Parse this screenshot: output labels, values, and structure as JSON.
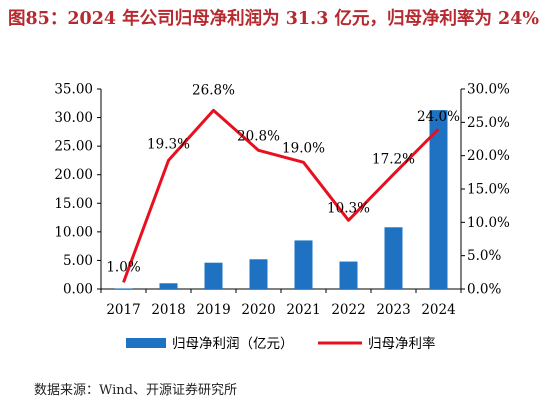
{
  "title": "图85：2024 年公司归母净利润为 31.3 亿元，归母净利率为 24%",
  "source": "数据来源：Wind、开源证券研究所",
  "colors": {
    "title": "#b5292f",
    "bar": "#1f72c1",
    "line": "#e8101e"
  },
  "chart_data": {
    "type": "bar+line",
    "categories": [
      "2017",
      "2018",
      "2019",
      "2020",
      "2021",
      "2022",
      "2023",
      "2024"
    ],
    "series": [
      {
        "name": "归母净利润（亿元）",
        "type": "bar",
        "axis": "left",
        "values": [
          0.1,
          1.0,
          4.6,
          5.2,
          8.5,
          4.8,
          10.8,
          31.3
        ]
      },
      {
        "name": "归母净利率",
        "type": "line",
        "axis": "right",
        "values": [
          1.0,
          19.3,
          26.8,
          20.8,
          19.0,
          10.3,
          17.2,
          24.0
        ],
        "labels": [
          "1.0%",
          "19.3%",
          "26.8%",
          "20.8%",
          "19.0%",
          "10.3%",
          "17.2%",
          "24.0%"
        ]
      }
    ],
    "y_left": {
      "lim": [
        0,
        35
      ],
      "ticks": [
        "0.00",
        "5.00",
        "10.00",
        "15.00",
        "20.00",
        "25.00",
        "30.00",
        "35.00"
      ]
    },
    "y_right": {
      "lim": [
        0,
        30
      ],
      "ticks": [
        "0.0%",
        "5.0%",
        "10.0%",
        "15.0%",
        "20.0%",
        "25.0%",
        "30.0%"
      ]
    },
    "legend": {
      "position": "bottom"
    },
    "grid": false
  }
}
